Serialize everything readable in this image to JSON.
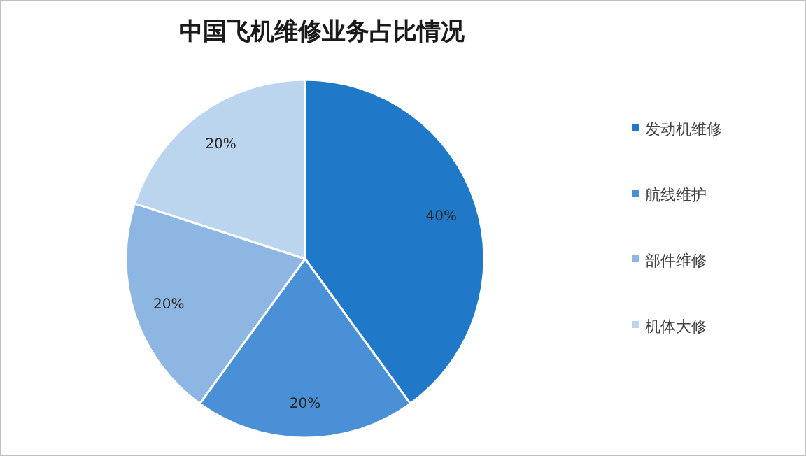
{
  "chart_data": {
    "type": "pie",
    "title": "中国飞机维修业务占比情况",
    "categories": [
      "发动机维修",
      "航线维护",
      "部件维修",
      "机体大修"
    ],
    "values": [
      40,
      20,
      20,
      20
    ],
    "value_labels": [
      "40%",
      "20%",
      "20%",
      "20%"
    ],
    "colors": [
      "#1f78c8",
      "#4a90d6",
      "#8db6e2",
      "#bcd5ee"
    ],
    "legend": "right"
  }
}
